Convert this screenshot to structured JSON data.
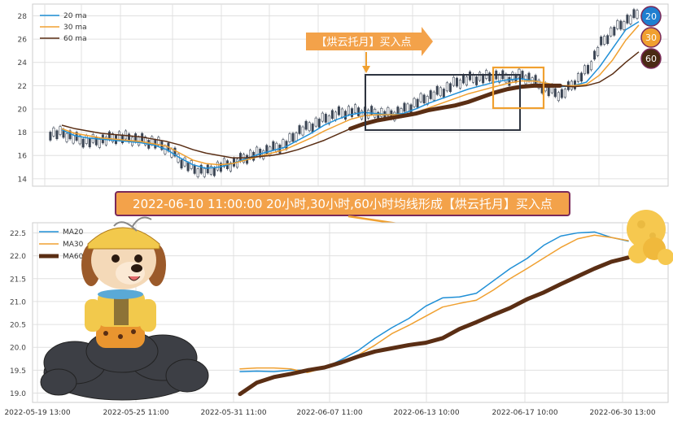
{
  "colors": {
    "ma20": "#1f8fd6",
    "ma30": "#f0a030",
    "ma60": "#5a2e14",
    "candle": "#3a4453",
    "banner_fill": "#f3a24a",
    "banner_border": "#7a2a5a",
    "grid": "#e0e0e0"
  },
  "badges": [
    {
      "label": "20",
      "fill": "#1f7fd0"
    },
    {
      "label": "30",
      "fill": "#f0a030"
    },
    {
      "label": "60",
      "fill": "#4a2a14"
    }
  ],
  "annotations": {
    "top_arrow_label": "【烘云托月】买入点",
    "banner": "2022-06-10 11:00:00 20小时,30小时,60小时均线形成【烘云托月】买入点"
  },
  "x_tick_labels": [
    "2022-05-19 13:00",
    "2022-05-25 11:00",
    "2022-05-31 11:00",
    "2022-06-07 11:00",
    "2022-06-13 10:00",
    "2022-06-17 10:00",
    "2022-06-30 13:00"
  ],
  "chart_data": [
    {
      "type": "line",
      "panel": "top",
      "description_source": "hourly candlesticks with moving averages",
      "ylim": [
        13.5,
        28.8
      ],
      "y_ticks": [
        14,
        16,
        18,
        20,
        22,
        24,
        26,
        28
      ],
      "legend": {
        "placement": "top-left",
        "entries": [
          "20 ma",
          "30 ma",
          "60 ma"
        ]
      },
      "grid": true,
      "candles_close": [
        17.9,
        17.4,
        17.2,
        17.3,
        17.6,
        17.5,
        17.3,
        17.1,
        16.6,
        15.5,
        14.8,
        14.6,
        15.1,
        15.3,
        15.9,
        16.2,
        16.6,
        17.0,
        18.1,
        18.6,
        19.2,
        19.6,
        19.8,
        19.7,
        19.6,
        19.5,
        19.9,
        20.6,
        21.1,
        21.6,
        22.3,
        22.6,
        22.7,
        22.8,
        22.6,
        22.9,
        22.3,
        21.6,
        21.2,
        22.3,
        23.4,
        25.6,
        26.8,
        27.6,
        28.3
      ],
      "series": [
        {
          "name": "20 ma",
          "values": [
            18.2,
            17.7,
            17.5,
            17.4,
            17.3,
            17.2,
            17.1,
            16.9,
            16.5,
            15.8,
            15.2,
            14.9,
            15.0,
            15.3,
            15.7,
            16.1,
            16.4,
            16.7,
            17.3,
            17.9,
            18.6,
            19.1,
            19.5,
            19.7,
            19.6,
            19.5,
            19.6,
            20.0,
            20.5,
            20.9,
            21.3,
            21.7,
            22.0,
            22.3,
            22.5,
            22.6,
            22.4,
            22.2,
            21.9,
            22.0,
            22.3,
            23.6,
            25.2,
            26.8,
            27.5
          ]
        },
        {
          "name": "30 ma",
          "values": [
            18.3,
            17.9,
            17.7,
            17.5,
            17.4,
            17.3,
            17.2,
            17.0,
            16.8,
            16.2,
            15.6,
            15.3,
            15.2,
            15.3,
            15.6,
            15.9,
            16.2,
            16.5,
            17.0,
            17.5,
            18.1,
            18.6,
            19.1,
            19.4,
            19.5,
            19.5,
            19.5,
            19.7,
            20.1,
            20.5,
            20.9,
            21.3,
            21.6,
            21.9,
            22.2,
            22.4,
            22.4,
            22.2,
            22.0,
            22.0,
            22.1,
            22.9,
            24.2,
            25.9,
            27.2
          ]
        },
        {
          "name": "60 ma",
          "values": [
            18.6,
            18.3,
            18.1,
            17.9,
            17.8,
            17.7,
            17.6,
            17.4,
            17.2,
            16.9,
            16.5,
            16.2,
            16.0,
            15.8,
            15.8,
            15.9,
            16.0,
            16.2,
            16.5,
            16.9,
            17.3,
            17.8,
            18.3,
            18.7,
            19.0,
            19.2,
            19.4,
            19.6,
            19.9,
            20.1,
            20.3,
            20.6,
            21.0,
            21.4,
            21.7,
            21.9,
            22.0,
            22.0,
            22.0,
            21.9,
            22.0,
            22.3,
            23.0,
            24.0,
            24.9
          ]
        }
      ]
    },
    {
      "type": "line",
      "panel": "bottom",
      "ylim": [
        18.85,
        22.65
      ],
      "y_ticks": [
        19.0,
        19.5,
        20.0,
        20.5,
        21.0,
        21.5,
        22.0,
        22.5
      ],
      "legend": {
        "placement": "top-left",
        "entries": [
          "MA20",
          "MA30",
          "MA60"
        ]
      },
      "grid": true,
      "series": [
        {
          "name": "MA20",
          "values": [
            19.47,
            19.48,
            19.47,
            19.5,
            19.5,
            19.55,
            19.73,
            19.93,
            20.2,
            20.43,
            20.63,
            20.9,
            21.08,
            21.1,
            21.18,
            21.45,
            21.72,
            21.94,
            22.23,
            22.43,
            22.5,
            22.52,
            22.4,
            22.32
          ]
        },
        {
          "name": "MA30",
          "values": [
            19.53,
            19.55,
            19.55,
            19.53,
            19.45,
            19.55,
            19.67,
            19.83,
            20.05,
            20.3,
            20.48,
            20.68,
            20.88,
            20.96,
            21.03,
            21.25,
            21.5,
            21.72,
            21.95,
            22.18,
            22.37,
            22.45,
            22.4,
            22.33
          ]
        },
        {
          "name": "MA60",
          "values": [
            18.98,
            19.23,
            19.35,
            19.42,
            19.5,
            19.56,
            19.67,
            19.8,
            19.91,
            19.98,
            20.05,
            20.1,
            20.2,
            20.4,
            20.55,
            20.71,
            20.86,
            21.05,
            21.2,
            21.38,
            21.55,
            21.72,
            21.87,
            21.96
          ]
        }
      ]
    }
  ]
}
